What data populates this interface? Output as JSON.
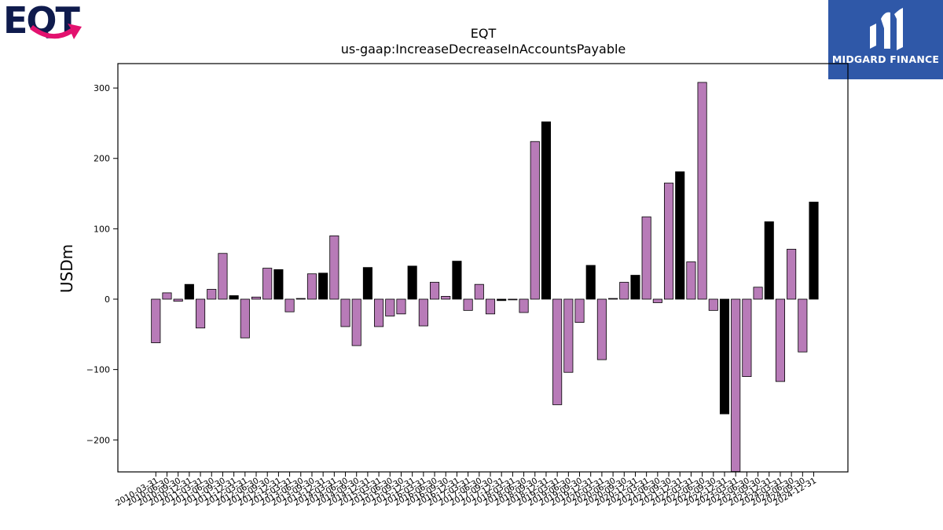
{
  "logos": {
    "left_brand": "EQT",
    "right_brand": "MIDGARD FINANCE"
  },
  "colors": {
    "positive_bar": "#000000",
    "negative_bar": "#000000",
    "highlight_bar": "#b87bb8",
    "bar_edge": "#000000",
    "brand_blue": "#2f58a8",
    "eqt_navy": "#0f1b4d",
    "eqt_pink": "#e3126f"
  },
  "chart_data": {
    "type": "bar",
    "title": "EQT",
    "subtitle": "us-gaap:IncreaseDecreaseInAccountsPayable",
    "xlabel": "",
    "ylabel": "USDm",
    "ylim": [
      -245,
      335
    ],
    "yticks": [
      -200,
      -100,
      0,
      100,
      200,
      300
    ],
    "grid": false,
    "legend": "none",
    "categories": [
      "2010-03-31",
      "2010-06-30",
      "2010-09-30",
      "2010-12-31",
      "2011-03-31",
      "2011-06-30",
      "2011-09-30",
      "2011-12-31",
      "2012-03-31",
      "2012-06-30",
      "2012-09-30",
      "2012-12-31",
      "2013-03-31",
      "2013-06-30",
      "2013-09-30",
      "2013-12-31",
      "2014-03-31",
      "2014-06-30",
      "2014-09-30",
      "2014-12-31",
      "2015-03-31",
      "2015-06-30",
      "2015-09-30",
      "2015-12-31",
      "2016-03-31",
      "2016-06-30",
      "2016-09-30",
      "2016-12-31",
      "2017-03-31",
      "2017-06-30",
      "2017-09-30",
      "2017-12-31",
      "2018-03-31",
      "2018-06-30",
      "2018-09-30",
      "2018-12-31",
      "2019-03-31",
      "2019-06-30",
      "2019-09-30",
      "2019-12-31",
      "2020-03-31",
      "2020-06-30",
      "2020-09-30",
      "2020-12-31",
      "2021-03-31",
      "2021-06-30",
      "2021-09-30",
      "2021-12-31",
      "2022-03-31",
      "2022-06-30",
      "2022-09-30",
      "2022-12-31",
      "2023-03-31",
      "2023-06-30",
      "2023-09-30",
      "2023-12-31",
      "2024-03-31",
      "2024-06-30",
      "2024-09-30",
      "2024-12-31"
    ],
    "values": [
      -62,
      9,
      -3,
      21,
      -41,
      14,
      65,
      5,
      -55,
      3,
      44,
      42,
      -18,
      1,
      36,
      37,
      90,
      -39,
      -66,
      45,
      -39,
      -24,
      -21,
      47,
      -38,
      24,
      4,
      54,
      -16,
      21,
      -21,
      -2,
      -1,
      -19,
      224,
      252,
      -150,
      -104,
      -33,
      48,
      -86,
      1,
      24,
      34,
      117,
      -5,
      165,
      181,
      53,
      308,
      -16,
      -163,
      -245,
      -110,
      17,
      110,
      -117,
      71,
      -75,
      138
    ],
    "bar_colors": [
      "#b87bb8",
      "#b87bb8",
      "#b87bb8",
      "#000000",
      "#b87bb8",
      "#b87bb8",
      "#b87bb8",
      "#000000",
      "#b87bb8",
      "#b87bb8",
      "#b87bb8",
      "#000000",
      "#b87bb8",
      "#b87bb8",
      "#b87bb8",
      "#000000",
      "#b87bb8",
      "#b87bb8",
      "#b87bb8",
      "#000000",
      "#b87bb8",
      "#b87bb8",
      "#b87bb8",
      "#000000",
      "#b87bb8",
      "#b87bb8",
      "#b87bb8",
      "#000000",
      "#b87bb8",
      "#b87bb8",
      "#b87bb8",
      "#000000",
      "#b87bb8",
      "#b87bb8",
      "#b87bb8",
      "#000000",
      "#b87bb8",
      "#b87bb8",
      "#b87bb8",
      "#000000",
      "#b87bb8",
      "#b87bb8",
      "#b87bb8",
      "#000000",
      "#b87bb8",
      "#b87bb8",
      "#b87bb8",
      "#000000",
      "#b87bb8",
      "#b87bb8",
      "#b87bb8",
      "#000000",
      "#b87bb8",
      "#b87bb8",
      "#b87bb8",
      "#000000",
      "#b87bb8",
      "#b87bb8",
      "#b87bb8",
      "#000000"
    ]
  }
}
